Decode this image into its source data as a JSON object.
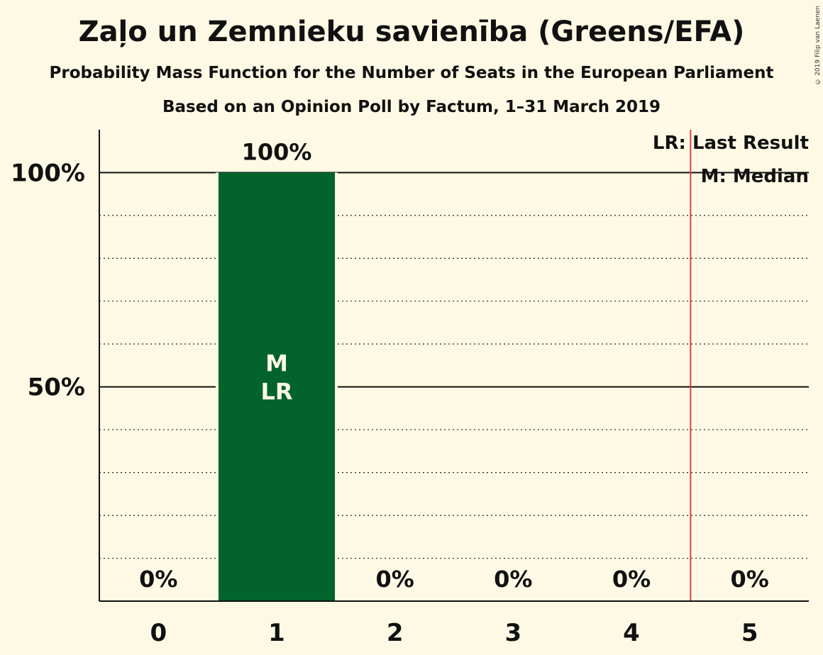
{
  "title": "Zaļo un Zemnieku savienība (Greens/EFA)",
  "subtitle": "Probability Mass Function for the Number of Seats in the European Parliament",
  "subtitle2": "Based on an Opinion Poll by Factum, 1–31 March 2019",
  "copyright": "© 2019 Filip van Laenen",
  "legend": {
    "last_result": "LR: Last Result",
    "median": "M: Median"
  },
  "chart_data": {
    "type": "bar",
    "categories": [
      "0",
      "1",
      "2",
      "3",
      "4",
      "5"
    ],
    "values": [
      0,
      100,
      0,
      0,
      0,
      0
    ],
    "value_labels": [
      "0%",
      "100%",
      "0%",
      "0%",
      "0%",
      "0%"
    ],
    "ylim": [
      0,
      110
    ],
    "y_ticks": [
      {
        "value": 50,
        "label": "50%"
      },
      {
        "value": 100,
        "label": "100%"
      }
    ],
    "minor_gridlines": [
      10,
      20,
      30,
      40,
      60,
      70,
      80,
      90
    ],
    "median_seat": 1,
    "last_result_seat": 1,
    "median_marker": "M",
    "last_result_marker": "LR",
    "majority_line_after": 4.5,
    "bar_color": "#02632b",
    "line_color": "#e0404a"
  }
}
